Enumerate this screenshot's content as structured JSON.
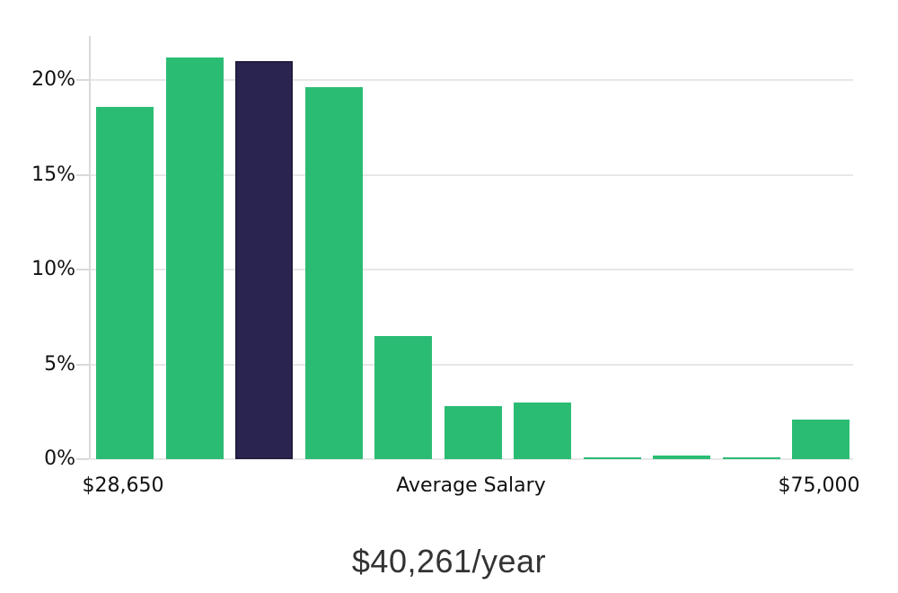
{
  "chart_data": {
    "type": "bar",
    "title": "$40,261/year",
    "description": "Salary distribution histogram with average salary bracket highlighted",
    "y_axis": {
      "tick_values": [
        0,
        5,
        10,
        15,
        20
      ],
      "tick_labels": [
        "0%",
        "5%",
        "10%",
        "15%",
        "20%"
      ],
      "ylim": [
        0,
        22.3
      ],
      "grid": true
    },
    "x_axis": {
      "tick_labels": [
        {
          "label": "$28,650",
          "bar_index": 0
        },
        {
          "label": "Average Salary",
          "bar_index": 5
        },
        {
          "label": "$75,000",
          "bar_index": 10
        }
      ]
    },
    "values_percent": [
      18.6,
      21.2,
      21.0,
      19.6,
      6.5,
      2.8,
      3.0,
      0.1,
      0.2,
      0.1,
      2.1
    ],
    "highlighted_index": 2,
    "legend": null,
    "colors": {
      "bar": "#2bbc74",
      "highlighted_bar": "#2a2550",
      "highlighted_bar_border": "#211d40",
      "gridline": "#e7e7e7",
      "axis_line": "#d9d9d9",
      "tick_label": "#111111",
      "title": "#333333"
    }
  }
}
